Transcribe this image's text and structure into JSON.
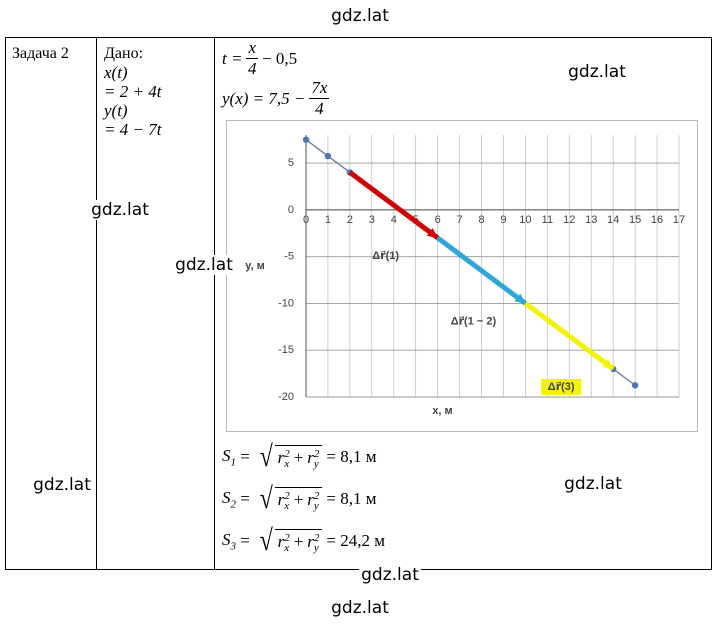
{
  "watermarks": [
    "gdz.lat",
    "gdz.lat",
    "gdz.lat",
    "gdz.lat",
    "gdz.lat",
    "gdz.lat",
    "gdz.lat",
    "gdz.lat"
  ],
  "task": "Задача 2",
  "given": {
    "title": "Дано:",
    "lines": [
      "x(t)",
      "= 2 + 4t",
      "y(t)",
      "= 4 − 7t"
    ]
  },
  "formulas": [
    {
      "lhs": "t =",
      "num": "x",
      "den": "4",
      "rhs": "− 0,5"
    },
    {
      "lhs": "y(x) = 7,5 −",
      "num": "7x",
      "den": "4"
    }
  ],
  "chart_data": {
    "type": "line",
    "x_label": "x, м",
    "y_label": "y, м",
    "xlim": [
      0,
      17
    ],
    "ylim": [
      -20,
      8
    ],
    "xticks": [
      0,
      1,
      2,
      3,
      4,
      5,
      6,
      7,
      8,
      9,
      10,
      11,
      12,
      13,
      14,
      15,
      16,
      17
    ],
    "yticks": [
      -20,
      -15,
      -10,
      -5,
      0,
      5
    ],
    "grid": true,
    "series": [
      {
        "color": "#6b7f9a",
        "x": [
          0,
          1,
          2,
          14,
          15
        ],
        "values": [
          7.5,
          5.75,
          4,
          -17,
          -18.75
        ]
      }
    ],
    "vectors": [
      {
        "label": "Δr⃗(1)",
        "color": "#d40000",
        "label_color": "#d40000",
        "x": [
          2,
          6
        ],
        "y": [
          4,
          -3
        ]
      },
      {
        "label": "Δr⃗(1 − 2)",
        "color": "#2aa8d8",
        "label_color": "#2b9bd6",
        "x": [
          6,
          10
        ],
        "y": [
          -3,
          -10
        ]
      },
      {
        "label": "Δr⃗(3)",
        "color": "#f4f400",
        "label_color": "#2e9e2e",
        "x": [
          10,
          14
        ],
        "y": [
          -10,
          -17
        ]
      }
    ]
  },
  "radicand": {
    "r": "r",
    "sub_x": "x",
    "sub_y": "y",
    "power": "2",
    "plus": "+"
  },
  "results": [
    {
      "symbol": "S",
      "index": "1",
      "value": "= 8,1 м"
    },
    {
      "symbol": "S",
      "index": "2",
      "value": "= 8,1 м"
    },
    {
      "symbol": "S",
      "index": "3",
      "value": "= 24,2 м"
    }
  ]
}
